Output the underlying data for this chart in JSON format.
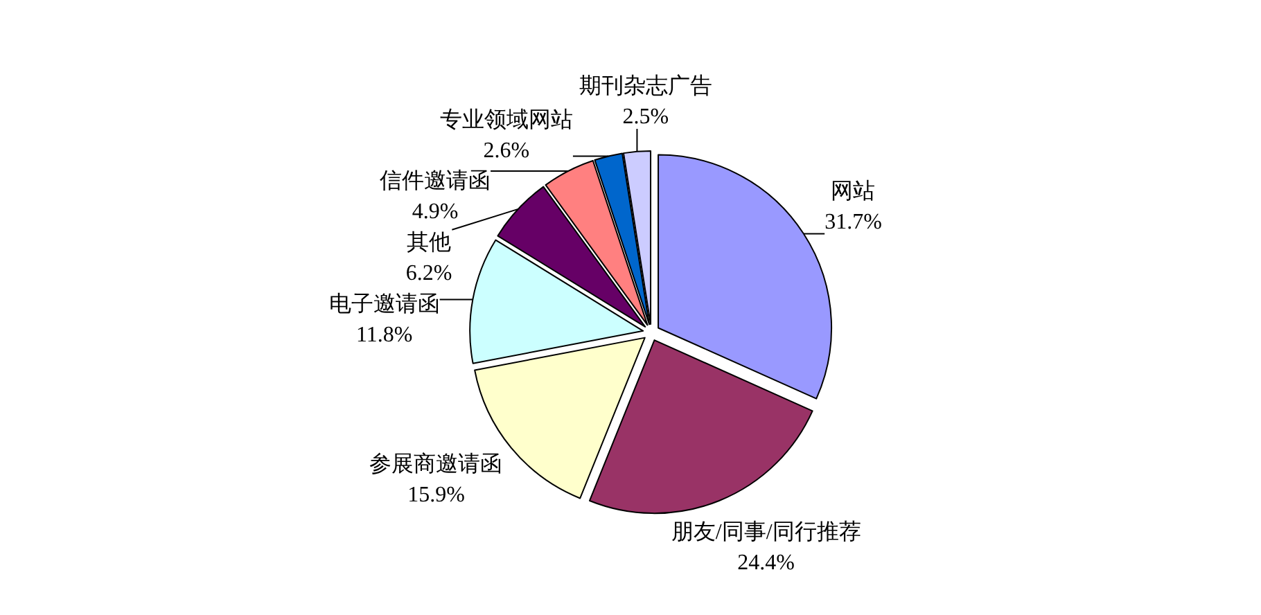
{
  "chart_data": {
    "type": "pie",
    "categories": [
      "网站",
      "朋友/同事/同行推荐",
      "参展商邀请函",
      "电子邀请函",
      "其他",
      "信件邀请函",
      "专业领域网站",
      "期刊杂志广告"
    ],
    "values": [
      31.7,
      24.4,
      15.9,
      11.8,
      6.2,
      4.9,
      2.6,
      2.5
    ],
    "value_labels": [
      "31.7%",
      "24.4%",
      "15.9%",
      "11.8%",
      "6.2%",
      "4.9%",
      "2.6%",
      "2.5%"
    ],
    "colors": [
      "#9999ff",
      "#993366",
      "#ffffcc",
      "#ccffff",
      "#660066",
      "#ff8080",
      "#0066cc",
      "#ccccff"
    ]
  }
}
